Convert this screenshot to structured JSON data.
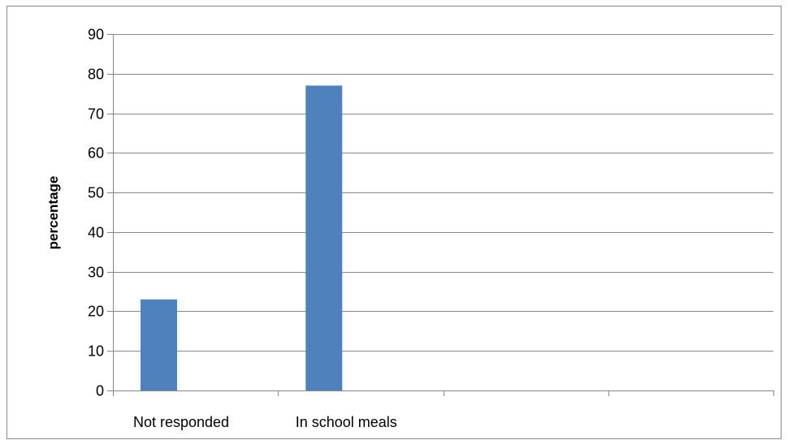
{
  "chart_data": {
    "type": "bar",
    "categories": [
      "Not responded",
      "In school meals",
      "",
      ""
    ],
    "values": [
      23,
      77,
      null,
      null
    ],
    "title": "",
    "xlabel": "",
    "ylabel": "percentage",
    "ylim": [
      0,
      90
    ],
    "yticks": [
      0,
      10,
      20,
      30,
      40,
      50,
      60,
      70,
      80,
      90
    ],
    "grid": true,
    "legend": "none"
  },
  "colors": {
    "bar": "#4f81bd",
    "grid": "#888888",
    "axis": "#888888",
    "frame": "#898989"
  }
}
